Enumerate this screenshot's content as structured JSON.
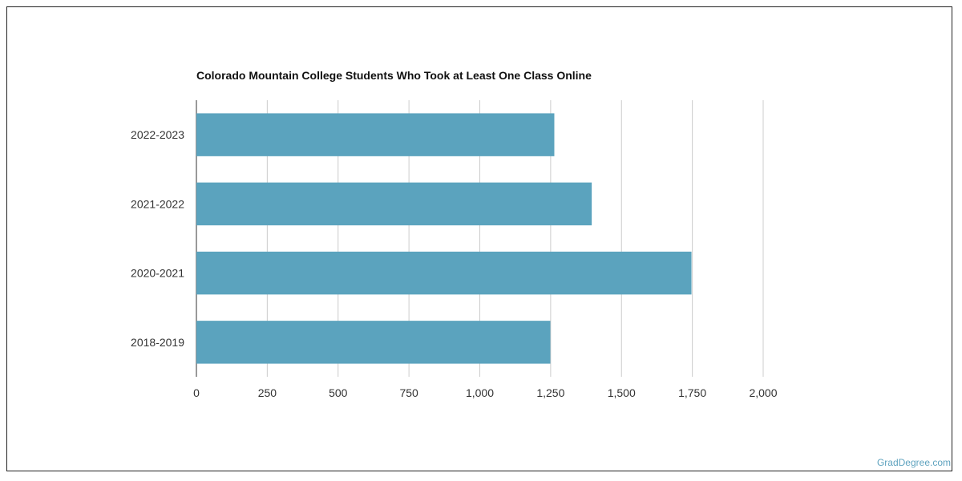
{
  "chart_data": {
    "type": "bar",
    "orientation": "horizontal",
    "title": "Colorado Mountain College Students Who Took at Least One Class Online",
    "categories": [
      "2022-2023",
      "2021-2022",
      "2020-2021",
      "2018-2019"
    ],
    "values": [
      1263,
      1395,
      1747,
      1249
    ],
    "xlim": [
      0,
      2000
    ],
    "xticks": [
      0,
      250,
      500,
      750,
      1000,
      1250,
      1500,
      1750,
      2000
    ],
    "xtick_labels": [
      "0",
      "250",
      "500",
      "750",
      "1,000",
      "1,250",
      "1,500",
      "1,750",
      "2,000"
    ],
    "xlabel": "",
    "ylabel": "",
    "grid": "vertical",
    "bar_color": "#5ba3be"
  },
  "watermark": "GradDegree.com"
}
